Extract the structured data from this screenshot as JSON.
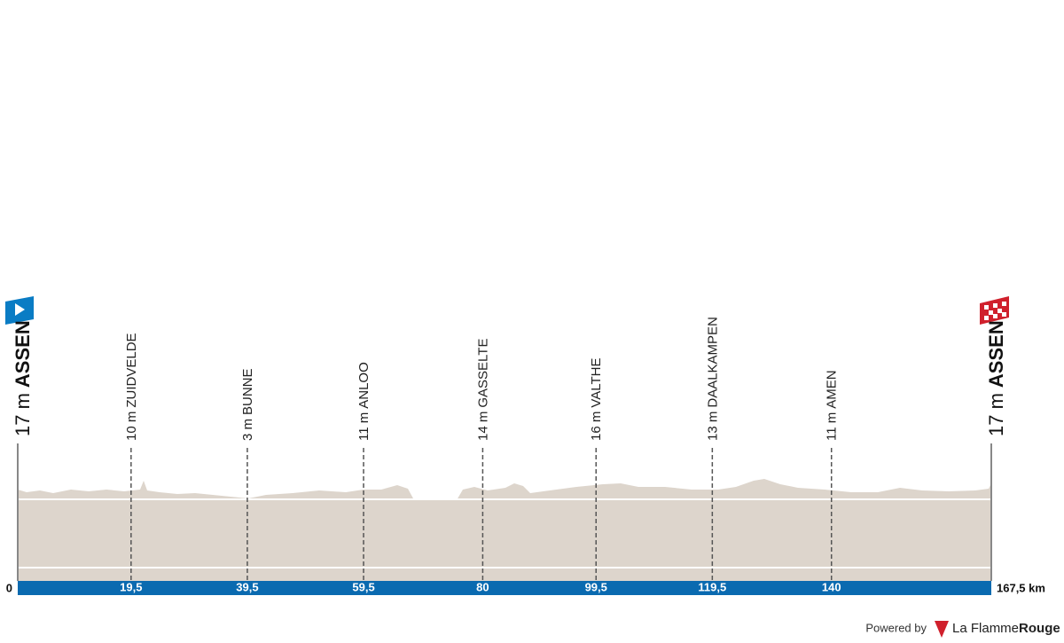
{
  "chart_data": {
    "type": "profile",
    "start": {
      "altitude": "17 m",
      "name": "ASSEN"
    },
    "finish": {
      "altitude": "17 m",
      "name": "ASSEN"
    },
    "waypoints": [
      {
        "altitude": "10 m",
        "name": "ZUIDVELDE",
        "km": {
          "value": 19.5,
          "label": "19,5"
        }
      },
      {
        "altitude": "3 m",
        "name": "BUNNE",
        "km": {
          "value": 39.5,
          "label": "39,5"
        }
      },
      {
        "altitude": "11 m",
        "name": "ANLOO",
        "km": {
          "value": 59.5,
          "label": "59,5"
        }
      },
      {
        "altitude": "14 m",
        "name": "GASSELTE",
        "km": 80
      },
      {
        "altitude": "16 m",
        "name": "VALTHE",
        "km": {
          "value": 99.5,
          "label": "99,5"
        }
      },
      {
        "altitude": "13 m",
        "name": "DAALKAMPEN",
        "km": {
          "value": 119.5,
          "label": "119,5"
        }
      },
      {
        "altitude": "11 m",
        "name": "AMEN",
        "km": 140
      }
    ],
    "xlim": [
      0,
      167.5
    ],
    "xticks": [
      0,
      {
        "value": 167.5,
        "label": "167,5 km"
      }
    ]
  },
  "footer": {
    "powered": "Powered by",
    "brand_a": "La Flamme",
    "brand_b": "Rouge"
  }
}
